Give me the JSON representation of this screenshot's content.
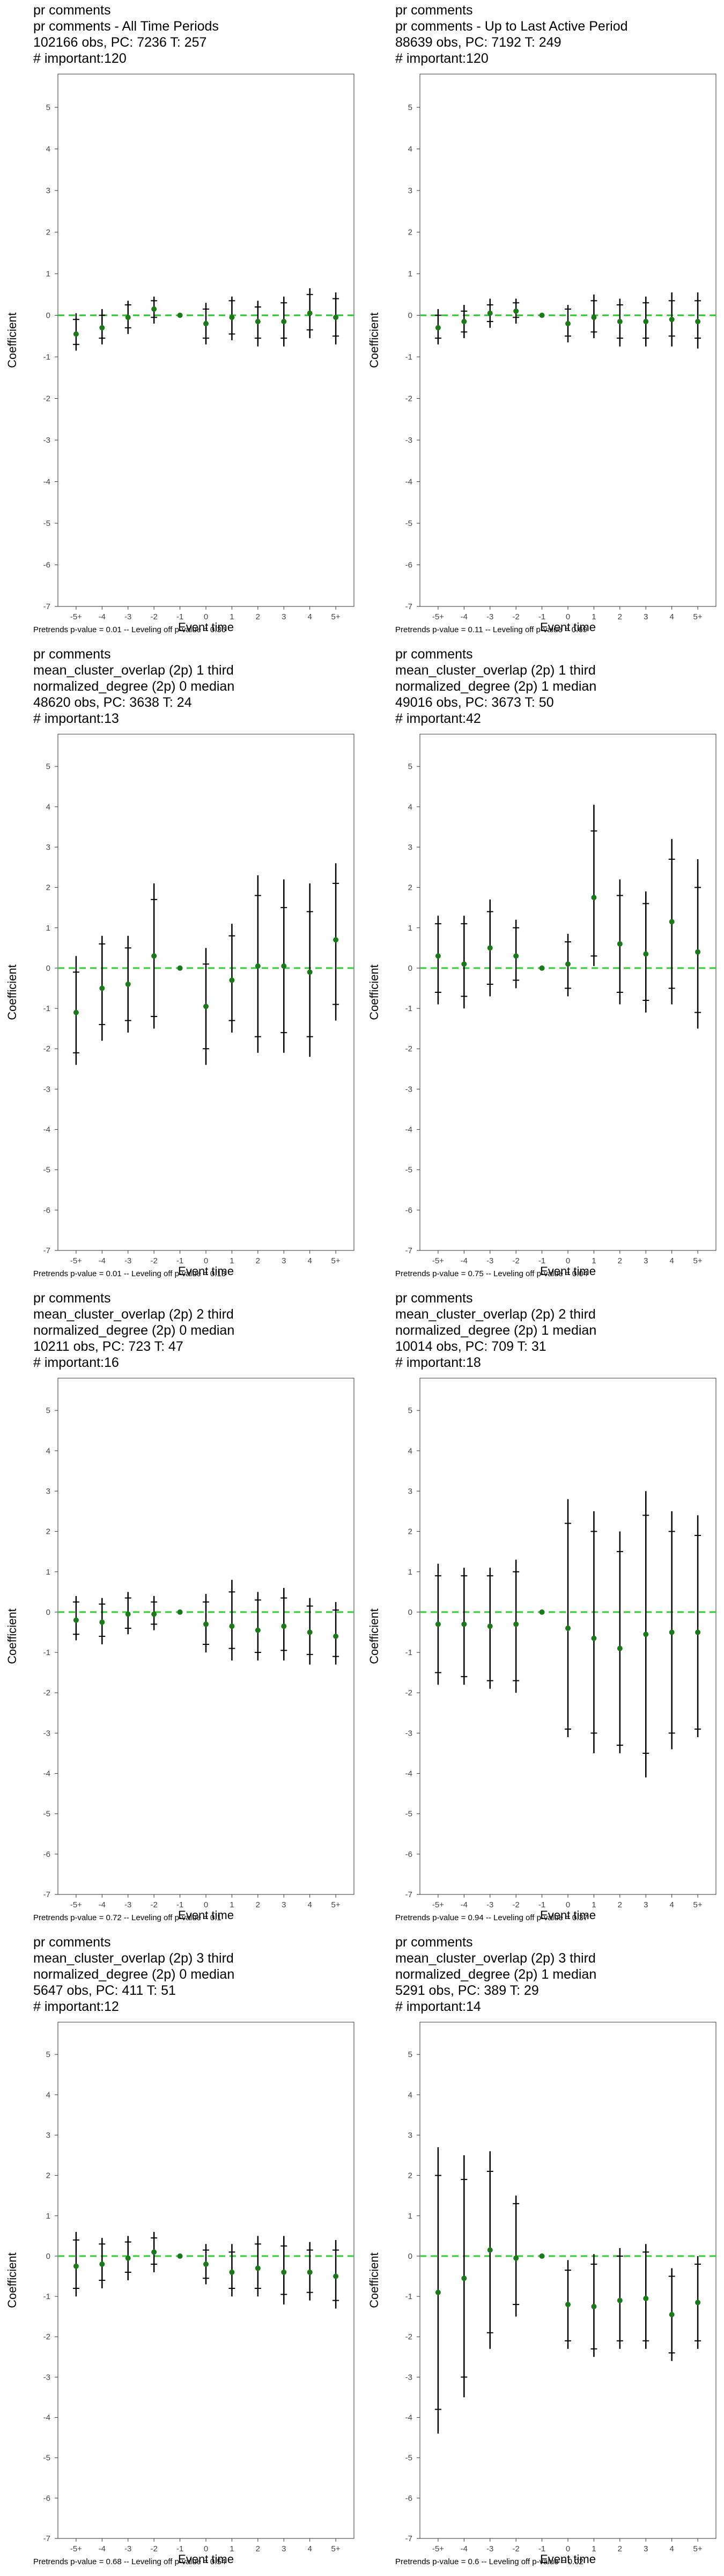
{
  "axis": {
    "xlabel": "Event time",
    "ylabel": "Coefficient",
    "xticks": [
      "-5+",
      "-4",
      "-3",
      "-2",
      "-1",
      "0",
      "1",
      "2",
      "3",
      "4",
      "5+"
    ],
    "yticks": [
      5,
      4,
      3,
      2,
      1,
      0,
      -1,
      -2,
      -3,
      -4,
      -5,
      -6,
      -7
    ]
  },
  "colors": {
    "point": "#1a7a1a",
    "zero_line": "#33cc33",
    "bars": "#000000"
  },
  "chart_data": [
    {
      "type": "scatter",
      "title_lines": [
        "pr comments",
        "pr comments - All Time Periods",
        "102166 obs, PC: 7236 T: 257",
        "# important:120"
      ],
      "footer": "Pretrends p-value = 0.01 -- Leveling off p-value = 0.36",
      "ylim": [
        -7,
        5.8
      ],
      "x": [
        "-5+",
        "-4",
        "-3",
        "-2",
        "-1",
        "0",
        "1",
        "2",
        "3",
        "4",
        "5+"
      ],
      "estimate": [
        -0.45,
        -0.3,
        -0.05,
        0.15,
        0,
        -0.2,
        -0.05,
        -0.15,
        -0.15,
        0.05,
        -0.05
      ],
      "ci_outer": [
        [
          -0.85,
          0.05
        ],
        [
          -0.7,
          0.15
        ],
        [
          -0.45,
          0.35
        ],
        [
          -0.2,
          0.45
        ],
        [
          0,
          0
        ],
        [
          -0.7,
          0.3
        ],
        [
          -0.6,
          0.45
        ],
        [
          -0.75,
          0.35
        ],
        [
          -0.75,
          0.45
        ],
        [
          -0.55,
          0.65
        ],
        [
          -0.7,
          0.55
        ]
      ],
      "ci_inner": [
        [
          -0.7,
          -0.1
        ],
        [
          -0.55,
          0.0
        ],
        [
          -0.3,
          0.25
        ],
        [
          -0.05,
          0.35
        ],
        [
          0,
          0
        ],
        [
          -0.55,
          0.15
        ],
        [
          -0.45,
          0.35
        ],
        [
          -0.55,
          0.2
        ],
        [
          -0.55,
          0.3
        ],
        [
          -0.35,
          0.5
        ],
        [
          -0.5,
          0.4
        ]
      ]
    },
    {
      "type": "scatter",
      "title_lines": [
        "pr comments",
        "pr comments - Up to Last Active Period",
        "88639 obs, PC: 7192 T: 249",
        "# important:120"
      ],
      "footer": "Pretrends p-value = 0.11 -- Leveling off p-value = 0.69",
      "ylim": [
        -7,
        5.8
      ],
      "x": [
        "-5+",
        "-4",
        "-3",
        "-2",
        "-1",
        "0",
        "1",
        "2",
        "3",
        "4",
        "5+"
      ],
      "estimate": [
        -0.3,
        -0.15,
        0.05,
        0.1,
        0,
        -0.2,
        -0.05,
        -0.15,
        -0.15,
        -0.1,
        -0.15
      ],
      "ci_outer": [
        [
          -0.7,
          0.15
        ],
        [
          -0.55,
          0.25
        ],
        [
          -0.3,
          0.4
        ],
        [
          -0.2,
          0.4
        ],
        [
          0,
          0
        ],
        [
          -0.65,
          0.25
        ],
        [
          -0.55,
          0.5
        ],
        [
          -0.75,
          0.4
        ],
        [
          -0.75,
          0.45
        ],
        [
          -0.75,
          0.55
        ],
        [
          -0.8,
          0.55
        ]
      ],
      "ci_inner": [
        [
          -0.55,
          0.0
        ],
        [
          -0.4,
          0.1
        ],
        [
          -0.15,
          0.25
        ],
        [
          -0.05,
          0.3
        ],
        [
          0,
          0
        ],
        [
          -0.5,
          0.15
        ],
        [
          -0.4,
          0.35
        ],
        [
          -0.55,
          0.25
        ],
        [
          -0.55,
          0.3
        ],
        [
          -0.5,
          0.35
        ],
        [
          -0.55,
          0.35
        ]
      ]
    },
    {
      "type": "scatter",
      "title_lines": [
        "pr comments",
        "mean_cluster_overlap (2p) 1 third",
        "normalized_degree (2p) 0 median",
        "48620 obs, PC: 3638 T: 24",
        "# important:13"
      ],
      "footer": "Pretrends p-value = 0.01 -- Leveling off p-value = 0.13",
      "ylim": [
        -7,
        5.8
      ],
      "x": [
        "-5+",
        "-4",
        "-3",
        "-2",
        "-1",
        "0",
        "1",
        "2",
        "3",
        "4",
        "5+"
      ],
      "estimate": [
        -1.1,
        -0.5,
        -0.4,
        0.3,
        0,
        -0.95,
        -0.3,
        0.05,
        0.05,
        -0.1,
        0.7
      ],
      "ci_outer": [
        [
          -2.4,
          0.3
        ],
        [
          -1.8,
          0.8
        ],
        [
          -1.6,
          0.8
        ],
        [
          -1.5,
          2.1
        ],
        [
          0,
          0
        ],
        [
          -2.4,
          0.5
        ],
        [
          -1.6,
          1.1
        ],
        [
          -2.1,
          2.3
        ],
        [
          -2.1,
          2.2
        ],
        [
          -2.2,
          2.1
        ],
        [
          -1.3,
          2.6
        ]
      ],
      "ci_inner": [
        [
          -2.1,
          -0.1
        ],
        [
          -1.4,
          0.6
        ],
        [
          -1.3,
          0.5
        ],
        [
          -1.2,
          1.7
        ],
        [
          0,
          0
        ],
        [
          -2.0,
          0.1
        ],
        [
          -1.3,
          0.8
        ],
        [
          -1.7,
          1.8
        ],
        [
          -1.6,
          1.5
        ],
        [
          -1.7,
          1.4
        ],
        [
          -0.9,
          2.1
        ]
      ]
    },
    {
      "type": "scatter",
      "title_lines": [
        "pr comments",
        "mean_cluster_overlap (2p) 1 third",
        "normalized_degree (2p) 1 median",
        "49016 obs, PC: 3673 T: 50",
        "# important:42"
      ],
      "footer": "Pretrends p-value = 0.75 -- Leveling off p-value = 0.04",
      "ylim": [
        -7,
        5.8
      ],
      "x": [
        "-5+",
        "-4",
        "-3",
        "-2",
        "-1",
        "0",
        "1",
        "2",
        "3",
        "4",
        "5+"
      ],
      "estimate": [
        0.3,
        0.1,
        0.5,
        0.3,
        0,
        0.1,
        1.75,
        0.6,
        0.35,
        1.15,
        0.4
      ],
      "ci_outer": [
        [
          -0.9,
          1.3
        ],
        [
          -1.0,
          1.3
        ],
        [
          -0.7,
          1.7
        ],
        [
          -0.5,
          1.2
        ],
        [
          0,
          0
        ],
        [
          -0.7,
          0.85
        ],
        [
          0.05,
          4.05
        ],
        [
          -0.9,
          2.2
        ],
        [
          -1.1,
          1.9
        ],
        [
          -0.9,
          3.2
        ],
        [
          -1.5,
          2.7
        ]
      ],
      "ci_inner": [
        [
          -0.6,
          1.1
        ],
        [
          -0.7,
          1.1
        ],
        [
          -0.4,
          1.4
        ],
        [
          -0.3,
          1.0
        ],
        [
          0,
          0
        ],
        [
          -0.5,
          0.65
        ],
        [
          0.3,
          3.4
        ],
        [
          -0.6,
          1.8
        ],
        [
          -0.8,
          1.6
        ],
        [
          -0.5,
          2.7
        ],
        [
          -1.1,
          2.0
        ]
      ]
    },
    {
      "type": "scatter",
      "title_lines": [
        "pr comments",
        "mean_cluster_overlap (2p) 2 third",
        "normalized_degree (2p) 0 median",
        "10211 obs, PC: 723 T: 47",
        "# important:16"
      ],
      "footer": "Pretrends p-value = 0.72 -- Leveling off p-value = 0.1",
      "ylim": [
        -7,
        5.8
      ],
      "x": [
        "-5+",
        "-4",
        "-3",
        "-2",
        "-1",
        "0",
        "1",
        "2",
        "3",
        "4",
        "5+"
      ],
      "estimate": [
        -0.2,
        -0.25,
        -0.05,
        -0.05,
        0,
        -0.3,
        -0.35,
        -0.45,
        -0.35,
        -0.5,
        -0.6
      ],
      "ci_outer": [
        [
          -0.7,
          0.4
        ],
        [
          -0.8,
          0.35
        ],
        [
          -0.55,
          0.5
        ],
        [
          -0.45,
          0.4
        ],
        [
          0,
          0
        ],
        [
          -1.0,
          0.45
        ],
        [
          -1.2,
          0.8
        ],
        [
          -1.2,
          0.5
        ],
        [
          -1.2,
          0.6
        ],
        [
          -1.3,
          0.35
        ],
        [
          -1.3,
          0.25
        ]
      ],
      "ci_inner": [
        [
          -0.55,
          0.25
        ],
        [
          -0.6,
          0.2
        ],
        [
          -0.4,
          0.35
        ],
        [
          -0.3,
          0.25
        ],
        [
          0,
          0
        ],
        [
          -0.8,
          0.25
        ],
        [
          -0.9,
          0.5
        ],
        [
          -1.0,
          0.3
        ],
        [
          -0.95,
          0.35
        ],
        [
          -1.05,
          0.15
        ],
        [
          -1.1,
          0.05
        ]
      ]
    },
    {
      "type": "scatter",
      "title_lines": [
        "pr comments",
        "mean_cluster_overlap (2p) 2 third",
        "normalized_degree (2p) 1 median",
        "10014 obs, PC: 709 T: 31",
        "# important:18"
      ],
      "footer": "Pretrends p-value = 0.94 -- Leveling off p-value = 0.37",
      "ylim": [
        -7,
        5.8
      ],
      "x": [
        "-5+",
        "-4",
        "-3",
        "-2",
        "-1",
        "0",
        "1",
        "2",
        "3",
        "4",
        "5+"
      ],
      "estimate": [
        -0.3,
        -0.3,
        -0.35,
        -0.3,
        0,
        -0.4,
        -0.65,
        -0.9,
        -0.55,
        -0.5,
        -0.5
      ],
      "ci_outer": [
        [
          -1.8,
          1.2
        ],
        [
          -1.8,
          1.1
        ],
        [
          -1.9,
          1.1
        ],
        [
          -2.0,
          1.3
        ],
        [
          0,
          0
        ],
        [
          -3.1,
          2.8
        ],
        [
          -3.5,
          2.5
        ],
        [
          -3.5,
          2.0
        ],
        [
          -4.1,
          3.0
        ],
        [
          -3.4,
          2.5
        ],
        [
          -3.1,
          2.4
        ]
      ],
      "ci_inner": [
        [
          -1.5,
          0.9
        ],
        [
          -1.6,
          0.9
        ],
        [
          -1.7,
          0.9
        ],
        [
          -1.7,
          1.0
        ],
        [
          0,
          0
        ],
        [
          -2.9,
          2.2
        ],
        [
          -3.0,
          2.0
        ],
        [
          -3.3,
          1.5
        ],
        [
          -3.5,
          2.4
        ],
        [
          -3.0,
          2.0
        ],
        [
          -2.9,
          1.9
        ]
      ]
    },
    {
      "type": "scatter",
      "title_lines": [
        "pr comments",
        "mean_cluster_overlap (2p) 3 third",
        "normalized_degree (2p) 0 median",
        "5647 obs, PC: 411 T: 51",
        "# important:12"
      ],
      "footer": "Pretrends p-value = 0.68 -- Leveling off p-value = 0.54",
      "ylim": [
        -7,
        5.8
      ],
      "x": [
        "-5+",
        "-4",
        "-3",
        "-2",
        "-1",
        "0",
        "1",
        "2",
        "3",
        "4",
        "5+"
      ],
      "estimate": [
        -0.25,
        -0.2,
        -0.05,
        0.1,
        0,
        -0.2,
        -0.4,
        -0.3,
        -0.4,
        -0.4,
        -0.5
      ],
      "ci_outer": [
        [
          -1.0,
          0.6
        ],
        [
          -0.8,
          0.45
        ],
        [
          -0.6,
          0.5
        ],
        [
          -0.4,
          0.6
        ],
        [
          0,
          0
        ],
        [
          -0.7,
          0.3
        ],
        [
          -1.0,
          0.3
        ],
        [
          -1.0,
          0.5
        ],
        [
          -1.2,
          0.5
        ],
        [
          -1.1,
          0.35
        ],
        [
          -1.3,
          0.4
        ]
      ],
      "ci_inner": [
        [
          -0.8,
          0.4
        ],
        [
          -0.6,
          0.3
        ],
        [
          -0.4,
          0.35
        ],
        [
          -0.2,
          0.45
        ],
        [
          0,
          0
        ],
        [
          -0.55,
          0.15
        ],
        [
          -0.8,
          0.1
        ],
        [
          -0.8,
          0.3
        ],
        [
          -0.95,
          0.25
        ],
        [
          -0.9,
          0.15
        ],
        [
          -1.1,
          0.15
        ]
      ]
    },
    {
      "type": "scatter",
      "title_lines": [
        "pr comments",
        "mean_cluster_overlap (2p) 3 third",
        "normalized_degree (2p) 1 median",
        "5291 obs, PC: 389 T: 29",
        "# important:14"
      ],
      "footer": "Pretrends p-value = 0.6 -- Leveling off p-value = 0.02",
      "ylim": [
        -7,
        5.8
      ],
      "x": [
        "-5+",
        "-4",
        "-3",
        "-2",
        "-1",
        "0",
        "1",
        "2",
        "3",
        "4",
        "5+"
      ],
      "estimate": [
        -0.9,
        -0.55,
        0.15,
        -0.05,
        0,
        -1.2,
        -1.25,
        -1.1,
        -1.05,
        -1.45,
        -1.15
      ],
      "ci_outer": [
        [
          -4.4,
          2.7
        ],
        [
          -3.5,
          2.5
        ],
        [
          -2.3,
          2.6
        ],
        [
          -1.5,
          1.5
        ],
        [
          0,
          0
        ],
        [
          -2.3,
          -0.1
        ],
        [
          -2.5,
          0.05
        ],
        [
          -2.3,
          0.2
        ],
        [
          -2.3,
          0.3
        ],
        [
          -2.6,
          -0.3
        ],
        [
          -2.3,
          0.0
        ]
      ],
      "ci_inner": [
        [
          -3.8,
          2.0
        ],
        [
          -3.0,
          1.9
        ],
        [
          -1.9,
          2.1
        ],
        [
          -1.2,
          1.3
        ],
        [
          0,
          0
        ],
        [
          -2.1,
          -0.35
        ],
        [
          -2.3,
          -0.2
        ],
        [
          -2.1,
          0.0
        ],
        [
          -2.1,
          0.1
        ],
        [
          -2.4,
          -0.5
        ],
        [
          -2.1,
          -0.2
        ]
      ]
    }
  ]
}
